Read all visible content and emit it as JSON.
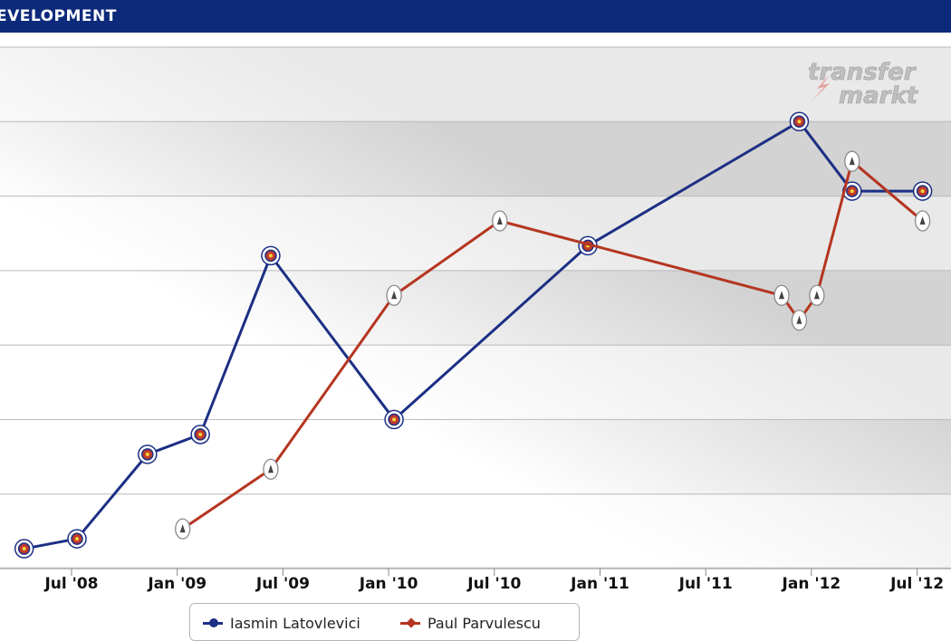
{
  "header": {
    "title": "EVELOPMENT"
  },
  "logo": {
    "line1": "transfer",
    "line2": "markt"
  },
  "chart_data": {
    "type": "line",
    "x_ticks": [
      "Jul '08",
      "Jan '09",
      "Jul '09",
      "Jan '10",
      "Jul '10",
      "Jan '11",
      "Jul '11",
      "Jan '12",
      "Jul '12"
    ],
    "series": [
      {
        "name": "Iasmin Latovlevici",
        "color": "#1c2f84",
        "points": [
          {
            "x": "2008-04",
            "y": 0.4
          },
          {
            "x": "2008-07",
            "y": 0.6
          },
          {
            "x": "2008-11",
            "y": 2.3
          },
          {
            "x": "2009-02",
            "y": 2.7
          },
          {
            "x": "2009-06",
            "y": 6.3
          },
          {
            "x": "2010-01",
            "y": 3.0
          },
          {
            "x": "2010-12",
            "y": 6.5
          },
          {
            "x": "2011-12",
            "y": 9.0
          },
          {
            "x": "2012-03",
            "y": 7.6
          },
          {
            "x": "2012-07",
            "y": 7.6
          }
        ]
      },
      {
        "name": "Paul Parvulescu",
        "color": "#b53520",
        "points": [
          {
            "x": "2009-01",
            "y": 0.8
          },
          {
            "x": "2009-06",
            "y": 2.0
          },
          {
            "x": "2010-01",
            "y": 5.5
          },
          {
            "x": "2010-07",
            "y": 7.0
          },
          {
            "x": "2011-11",
            "y": 5.5
          },
          {
            "x": "2011-12",
            "y": 5.0
          },
          {
            "x": "2012-01",
            "y": 5.5
          },
          {
            "x": "2012-03",
            "y": 8.2
          },
          {
            "x": "2012-07",
            "y": 7.0
          }
        ]
      }
    ],
    "grid": true,
    "legend_position": "bottom"
  }
}
